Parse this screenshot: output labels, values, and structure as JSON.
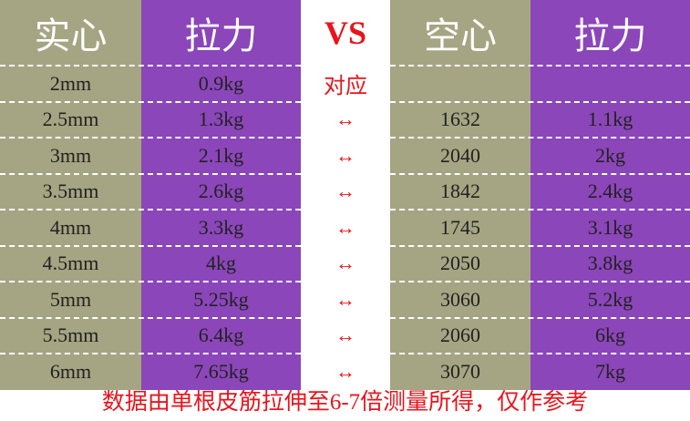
{
  "header": {
    "solid": "实心",
    "solid_force": "拉力",
    "vs": "VS",
    "hollow": "空心",
    "hollow_force": "拉力"
  },
  "rows": [
    {
      "solid": "2mm",
      "solid_force": "0.9kg",
      "link": "对应"
    },
    {
      "solid": "2.5mm",
      "solid_force": "1.3kg",
      "link": "↔",
      "hollow": 1632,
      "hollow_force": "1.1kg"
    },
    {
      "solid": "3mm",
      "solid_force": "2.1kg",
      "link": "↔",
      "hollow": 2040,
      "hollow_force": "2kg"
    },
    {
      "solid": "3.5mm",
      "solid_force": "2.6kg",
      "link": "↔",
      "hollow": 1842,
      "hollow_force": "2.4kg"
    },
    {
      "solid": "4mm",
      "solid_force": "3.3kg",
      "link": "↔",
      "hollow": 1745,
      "hollow_force": "3.1kg"
    },
    {
      "solid": "4.5mm",
      "solid_force": "4kg",
      "link": "↔",
      "hollow": 2050,
      "hollow_force": "3.8kg"
    },
    {
      "solid": "5mm",
      "solid_force": "5.25kg",
      "link": "↔",
      "hollow": 3060,
      "hollow_force": "5.2kg"
    },
    {
      "solid": "5.5mm",
      "solid_force": "6.4kg",
      "link": "↔",
      "hollow": 2060,
      "hollow_force": "6kg"
    },
    {
      "solid": "6mm",
      "solid_force": "7.65kg",
      "link": "↔",
      "hollow": 3070,
      "hollow_force": "7kg"
    }
  ],
  "footer": "数据由单根皮筋拉伸至6-7倍测量所得，仅作参考"
}
